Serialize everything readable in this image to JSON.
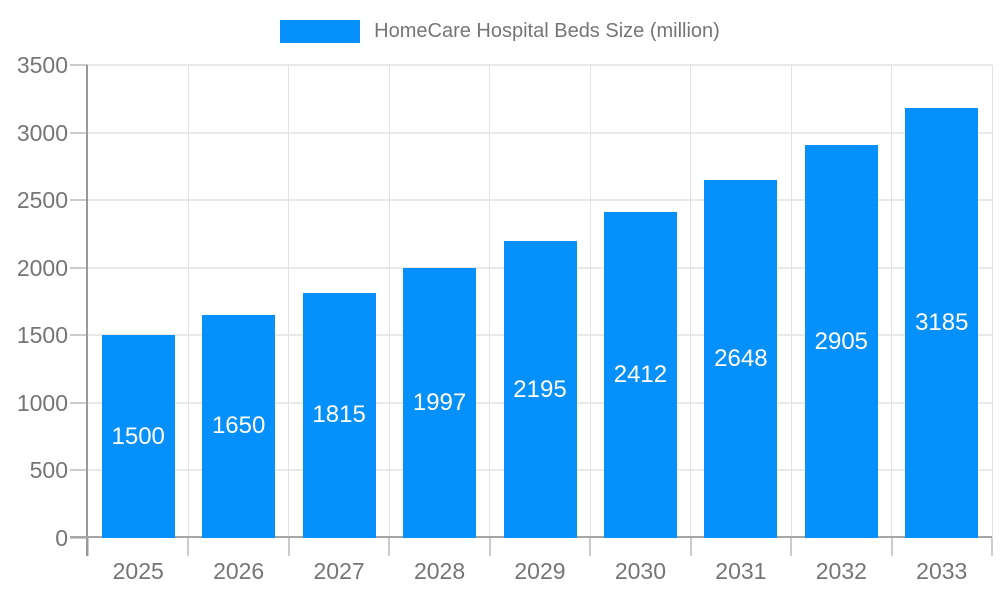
{
  "legend": {
    "label": "HomeCare Hospital Beds Size (million)"
  },
  "chart_data": {
    "type": "bar",
    "title": "HomeCare Hospital Beds Size (million)",
    "categories": [
      "2025",
      "2026",
      "2027",
      "2028",
      "2029",
      "2030",
      "2031",
      "2032",
      "2033"
    ],
    "values": [
      1500,
      1650,
      1815,
      1997,
      2195,
      2412,
      2648,
      2905,
      3185
    ],
    "bar_labels": [
      "1500",
      "1650",
      "1815",
      "1997",
      "2195",
      "2412",
      "2648",
      "2905",
      "3185"
    ],
    "xlabel": "",
    "ylabel": "",
    "ylim": [
      0,
      3500
    ],
    "yticks": [
      0,
      500,
      1000,
      1500,
      2000,
      2500,
      3000,
      3500
    ],
    "ytick_labels": [
      "0",
      "500",
      "1000",
      "1500",
      "2000",
      "2500",
      "3000",
      "3500"
    ],
    "grid": true,
    "legend_position": "top-center",
    "bar_label_position": "inside-center",
    "colors": {
      "bar": "#0590FB",
      "bar_label": "#FFFFFF",
      "axis_text": "#757575",
      "legend_text": "#757575",
      "grid_line_h": "#E9E9E9",
      "grid_line_v": "#E3E3E3",
      "axis_line": "#999999",
      "baseline": "#A6A6A6",
      "tick_line": "#CCCCCC",
      "background": "#FFFFFF"
    }
  }
}
